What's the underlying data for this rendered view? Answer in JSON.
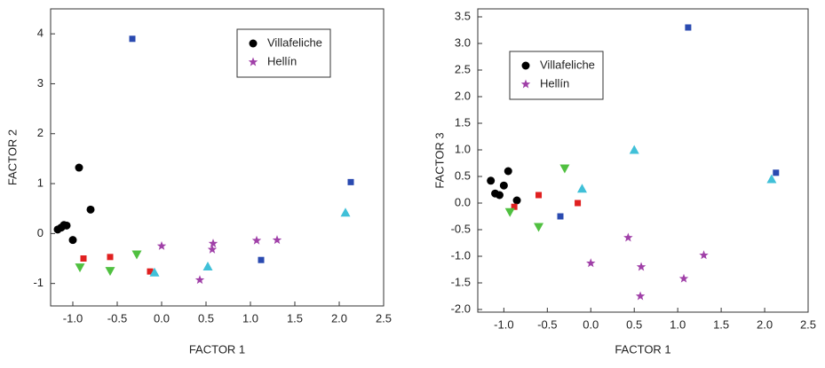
{
  "chart_data": [
    {
      "type": "scatter",
      "xlabel": "FACTOR 1",
      "ylabel": "FACTOR 2",
      "xlim": [
        -1.25,
        2.5
      ],
      "ylim": [
        -1.45,
        4.5
      ],
      "xticks": [
        {
          "value": -1.0,
          "label": "-1.0"
        },
        -0.5,
        {
          "value": 0.0,
          "label": "0.0"
        },
        0.5,
        {
          "value": 1.0,
          "label": "1.0"
        },
        1.5,
        {
          "value": 2.0,
          "label": "2.0"
        },
        2.5
      ],
      "yticks": [
        -1,
        0,
        1,
        2,
        3,
        4
      ],
      "legend": "upper right",
      "series": [
        {
          "name": "Villafeliche",
          "color": "#000000",
          "marker": "circle",
          "x": [
            -0.93,
            -0.8,
            -1.0,
            -1.07,
            -1.1,
            -1.13,
            -1.17
          ],
          "values": [
            1.32,
            0.48,
            -0.13,
            0.16,
            0.17,
            0.12,
            0.08
          ]
        },
        {
          "name": "Hellín",
          "color": "#a040a8",
          "marker": "star",
          "x": [
            0.0,
            0.58,
            0.57,
            1.07,
            1.3,
            0.43
          ],
          "values": [
            -0.25,
            -0.2,
            -0.32,
            -0.14,
            -0.13,
            -0.93
          ]
        },
        {
          "color": "#2a4ab0",
          "marker": "square",
          "x": [
            -0.33,
            1.12,
            2.13
          ],
          "values": [
            3.9,
            -0.53,
            1.03
          ]
        },
        {
          "color": "#e02020",
          "marker": "square",
          "x": [
            -0.88,
            -0.58,
            -0.13
          ],
          "values": [
            -0.5,
            -0.47,
            -0.76
          ]
        },
        {
          "color": "#50c040",
          "marker": "triangle-down",
          "x": [
            -0.92,
            -0.58,
            -0.28
          ],
          "values": [
            -0.68,
            -0.75,
            -0.42
          ]
        },
        {
          "color": "#40c0d8",
          "marker": "triangle-up",
          "x": [
            -0.08,
            0.52,
            2.07
          ],
          "values": [
            -0.78,
            -0.66,
            0.42
          ]
        }
      ]
    },
    {
      "type": "scatter",
      "xlabel": "FACTOR 1",
      "ylabel": "FACTOR 3",
      "xlim": [
        -1.3,
        2.5
      ],
      "ylim": [
        -2.05,
        3.65
      ],
      "xticks": [
        {
          "value": -1.0,
          "label": "-1.0"
        },
        -0.5,
        {
          "value": 0.0,
          "label": "0.0"
        },
        0.5,
        {
          "value": 1.0,
          "label": "1.0"
        },
        1.5,
        {
          "value": 2.0,
          "label": "2.0"
        },
        2.5
      ],
      "yticks": [
        {
          "value": -2.0,
          "label": "-2.0"
        },
        -1.5,
        {
          "value": -1.0,
          "label": "-1.0"
        },
        -0.5,
        {
          "value": 0.0,
          "label": "0.0"
        },
        0.5,
        {
          "value": 1.0,
          "label": "1.0"
        },
        1.5,
        {
          "value": 2.0,
          "label": "2.0"
        },
        2.5,
        {
          "value": 3.0,
          "label": "3.0"
        },
        3.5
      ],
      "legend": "upper left",
      "series": [
        {
          "name": "Villafeliche",
          "color": "#000000",
          "marker": "circle",
          "x": [
            -1.15,
            -1.1,
            -1.05,
            -1.0,
            -0.95,
            -0.85
          ],
          "values": [
            0.42,
            0.18,
            0.15,
            0.33,
            0.6,
            0.05
          ]
        },
        {
          "name": "Hellín",
          "color": "#a040a8",
          "marker": "star",
          "x": [
            0.43,
            0.0,
            0.58,
            0.57,
            1.07,
            1.3
          ],
          "values": [
            -0.65,
            -1.13,
            -1.2,
            -1.75,
            -1.42,
            -0.98
          ]
        },
        {
          "color": "#2a4ab0",
          "marker": "square",
          "x": [
            1.12,
            -0.35,
            2.13
          ],
          "values": [
            3.3,
            -0.25,
            0.57
          ]
        },
        {
          "color": "#e02020",
          "marker": "square",
          "x": [
            -0.88,
            -0.6,
            -0.15
          ],
          "values": [
            -0.07,
            0.15,
            0.0
          ]
        },
        {
          "color": "#50c040",
          "marker": "triangle-down",
          "x": [
            -0.93,
            -0.6,
            -0.3
          ],
          "values": [
            -0.17,
            -0.45,
            0.65
          ]
        },
        {
          "color": "#40c0d8",
          "marker": "triangle-up",
          "x": [
            -0.1,
            0.5,
            2.08
          ],
          "values": [
            0.27,
            1.0,
            0.45
          ]
        }
      ]
    }
  ]
}
